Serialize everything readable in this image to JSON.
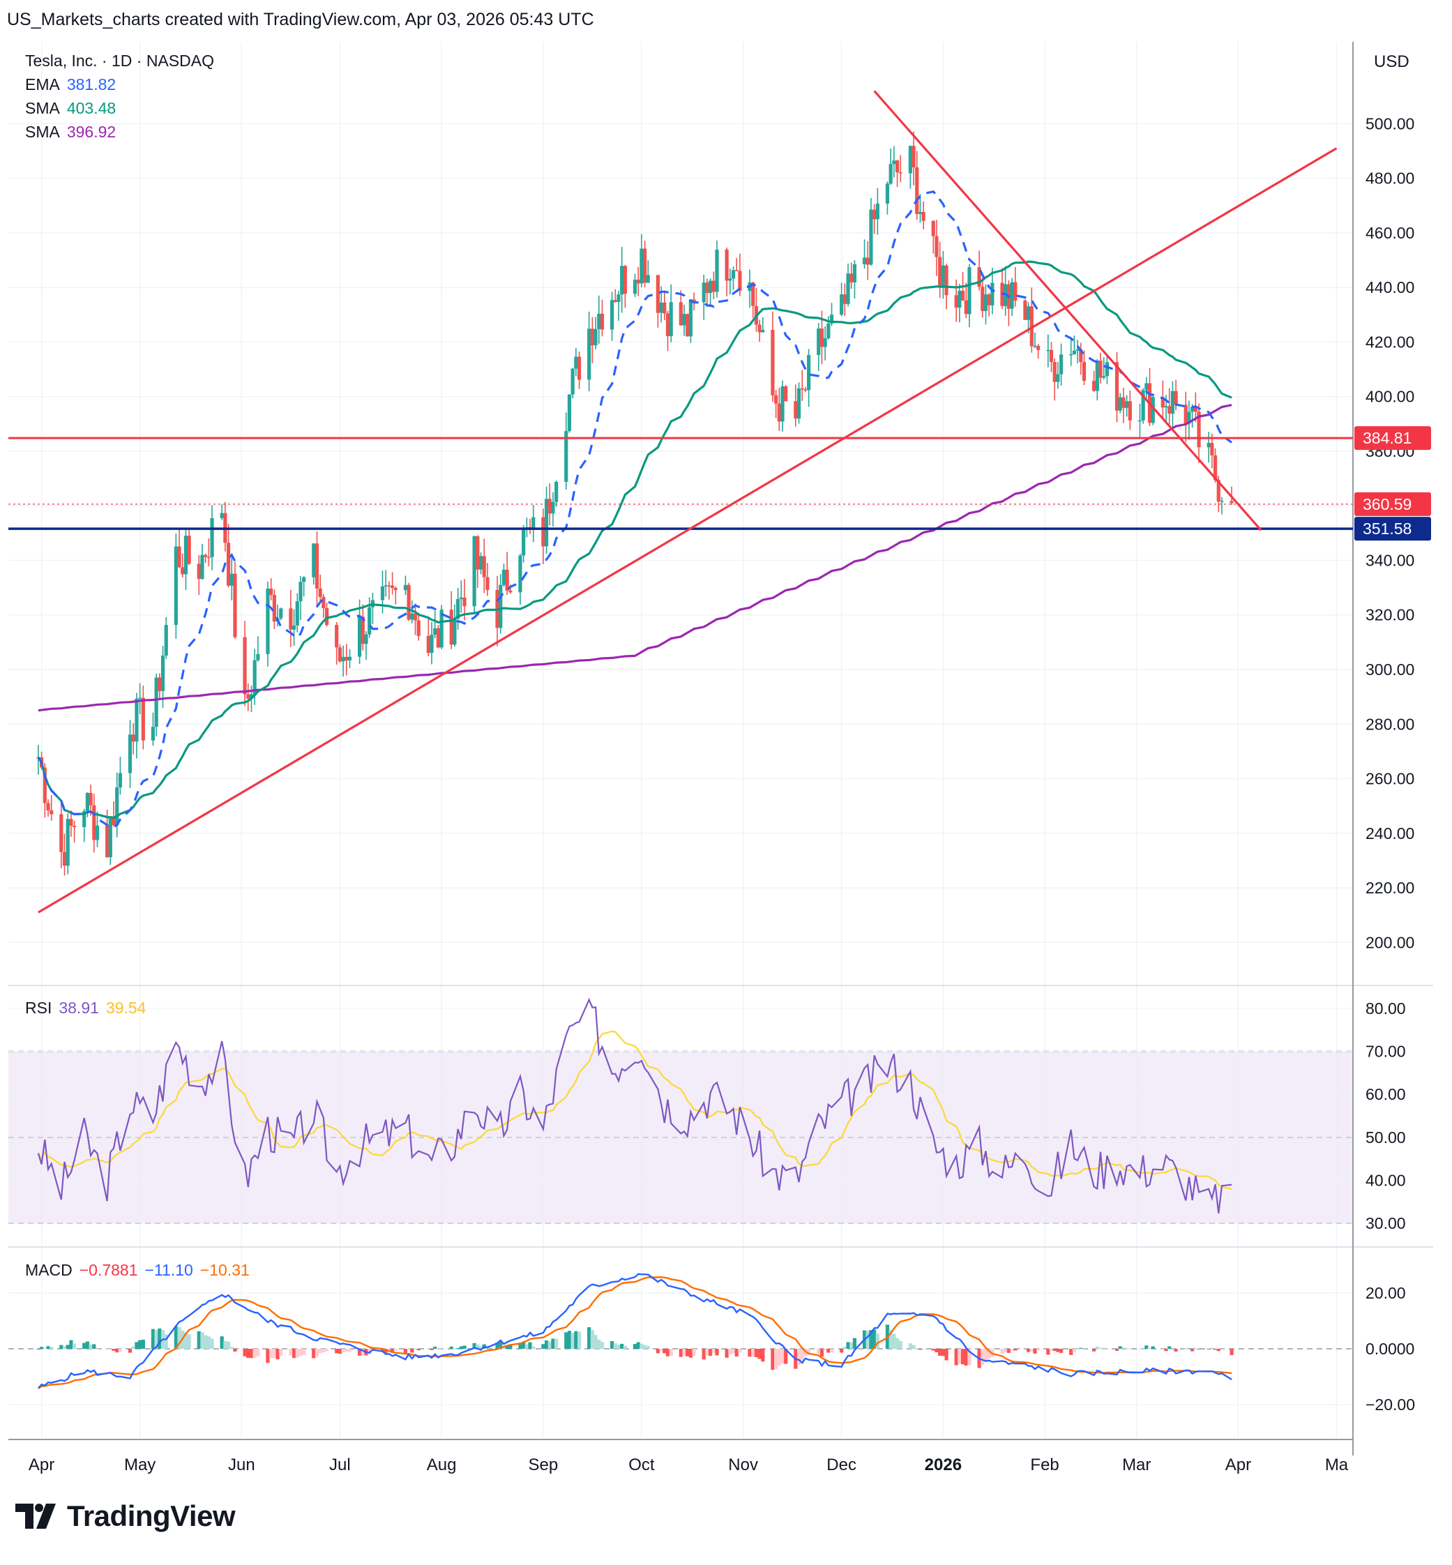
{
  "header": "US_Markets_charts created with TradingView.com, Apr 03, 2026 05:43 UTC",
  "legend": {
    "symbol": "Tesla, Inc. · 1D · NASDAQ",
    "ema_label": "EMA",
    "ema_value": "381.82",
    "sma1_label": "SMA",
    "sma1_value": "403.48",
    "sma2_label": "SMA",
    "sma2_value": "396.92",
    "rsi_label": "RSI",
    "rsi_value": "38.91",
    "rsi_ma_value": "39.54",
    "macd_label": "MACD",
    "macd_hist": "−0.7881",
    "macd_line": "−11.10",
    "macd_signal": "−10.31"
  },
  "brand": "TradingView",
  "colors": {
    "up": "#26a69a",
    "down": "#ef5350",
    "ema": "#2962ff",
    "sma50": "#089981",
    "sma200": "#9c27b0",
    "trend": "#f23645",
    "support": "#0d2a8c",
    "rsi": "#7e57c2",
    "rsi_ma": "#fdd835",
    "macd": "#2962ff",
    "signal": "#ff6d00"
  },
  "chart_data": [
    {
      "type": "candlestick",
      "currency": "USD",
      "x_ticks": [
        "Apr",
        "May",
        "Jun",
        "Jul",
        "Aug",
        "Sep",
        "Oct",
        "Nov",
        "Dec",
        "2026",
        "Feb",
        "Mar",
        "Apr",
        "Ma"
      ],
      "y_ticks": [
        "200.00",
        "220.00",
        "240.00",
        "260.00",
        "280.00",
        "300.00",
        "320.00",
        "340.00",
        "360.00",
        "380.00",
        "400.00",
        "420.00",
        "440.00",
        "460.00",
        "480.00",
        "500.00"
      ],
      "ylim": [
        185,
        530
      ],
      "price_labels": [
        {
          "value": 384.81,
          "text": "384.81",
          "color": "#f23645"
        },
        {
          "value": 360.59,
          "text": "360.59",
          "color": "#f23645"
        },
        {
          "value": 351.58,
          "text": "351.58",
          "color": "#0d2a8c"
        }
      ],
      "horizontal_lines": [
        384.81,
        351.58
      ],
      "current_price": 360.59,
      "trendlines": [
        {
          "from": [
            "2025-03-31",
            211
          ],
          "to": [
            "2026-05-01",
            491
          ]
        },
        {
          "from": [
            "2025-12-11",
            512
          ],
          "to": [
            "2026-04-08",
            351
          ]
        }
      ],
      "closes_key": [
        [
          "2025-03-31",
          268
        ],
        [
          "2025-04-07",
          233
        ],
        [
          "2025-04-14",
          252
        ],
        [
          "2025-04-21",
          236
        ],
        [
          "2025-04-28",
          282
        ],
        [
          "2025-05-05",
          280
        ],
        [
          "2025-05-12",
          342
        ],
        [
          "2025-05-19",
          338
        ],
        [
          "2025-05-26",
          360
        ],
        [
          "2025-06-02",
          284
        ],
        [
          "2025-06-09",
          325
        ],
        [
          "2025-06-16",
          322
        ],
        [
          "2025-06-23",
          338
        ],
        [
          "2025-06-30",
          302
        ],
        [
          "2025-07-07",
          315
        ],
        [
          "2025-07-14",
          322
        ],
        [
          "2025-07-21",
          330
        ],
        [
          "2025-07-28",
          308
        ],
        [
          "2025-08-04",
          318
        ],
        [
          "2025-08-11",
          340
        ],
        [
          "2025-08-18",
          322
        ],
        [
          "2025-08-25",
          348
        ],
        [
          "2025-09-01",
          350
        ],
        [
          "2025-09-08",
          396
        ],
        [
          "2025-09-15",
          425
        ],
        [
          "2025-09-22",
          438
        ],
        [
          "2025-10-01",
          452
        ],
        [
          "2025-10-08",
          432
        ],
        [
          "2025-10-15",
          425
        ],
        [
          "2025-10-22",
          445
        ],
        [
          "2025-10-29",
          452
        ],
        [
          "2025-11-03",
          440
        ],
        [
          "2025-11-10",
          400
        ],
        [
          "2025-11-17",
          392
        ],
        [
          "2025-11-24",
          418
        ],
        [
          "2025-12-01",
          430
        ],
        [
          "2025-12-08",
          452
        ],
        [
          "2025-12-15",
          480
        ],
        [
          "2025-12-22",
          485
        ],
        [
          "2025-12-29",
          450
        ],
        [
          "2026-01-05",
          438
        ],
        [
          "2026-01-12",
          440
        ],
        [
          "2026-01-19",
          438
        ],
        [
          "2026-01-26",
          430
        ],
        [
          "2026-02-02",
          410
        ],
        [
          "2026-02-09",
          420
        ],
        [
          "2026-02-16",
          410
        ],
        [
          "2026-02-23",
          402
        ],
        [
          "2026-03-02",
          398
        ],
        [
          "2026-03-09",
          400
        ],
        [
          "2026-03-16",
          395
        ],
        [
          "2026-03-23",
          375
        ],
        [
          "2026-03-30",
          361
        ]
      ],
      "ema_last": 381.82,
      "sma50_last": 403.48,
      "sma200_last": 396.92
    },
    {
      "type": "line",
      "name": "RSI",
      "y_ticks": [
        "30.00",
        "40.00",
        "50.00",
        "60.00",
        "70.00",
        "80.00"
      ],
      "bands": [
        30,
        50,
        70
      ],
      "ylim": [
        25,
        85
      ],
      "rsi_key": [
        [
          "2025-03-31",
          48
        ],
        [
          "2025-04-07",
          38
        ],
        [
          "2025-04-14",
          50
        ],
        [
          "2025-04-21",
          40
        ],
        [
          "2025-04-28",
          58
        ],
        [
          "2025-05-05",
          55
        ],
        [
          "2025-05-12",
          72
        ],
        [
          "2025-05-19",
          63
        ],
        [
          "2025-05-26",
          68
        ],
        [
          "2025-06-02",
          40
        ],
        [
          "2025-06-09",
          52
        ],
        [
          "2025-06-16",
          48
        ],
        [
          "2025-06-23",
          56
        ],
        [
          "2025-06-30",
          42
        ],
        [
          "2025-07-07",
          48
        ],
        [
          "2025-07-14",
          50
        ],
        [
          "2025-07-21",
          52
        ],
        [
          "2025-07-28",
          44
        ],
        [
          "2025-08-04",
          48
        ],
        [
          "2025-08-11",
          58
        ],
        [
          "2025-08-18",
          50
        ],
        [
          "2025-08-25",
          60
        ],
        [
          "2025-09-01",
          52
        ],
        [
          "2025-09-08",
          72
        ],
        [
          "2025-09-15",
          80
        ],
        [
          "2025-09-22",
          66
        ],
        [
          "2025-10-01",
          72
        ],
        [
          "2025-10-08",
          58
        ],
        [
          "2025-10-15",
          55
        ],
        [
          "2025-10-22",
          60
        ],
        [
          "2025-10-29",
          56
        ],
        [
          "2025-11-03",
          50
        ],
        [
          "2025-11-10",
          42
        ],
        [
          "2025-11-17",
          40
        ],
        [
          "2025-11-24",
          52
        ],
        [
          "2025-12-01",
          58
        ],
        [
          "2025-12-08",
          62
        ],
        [
          "2025-12-15",
          67
        ],
        [
          "2025-12-22",
          63
        ],
        [
          "2025-12-29",
          48
        ],
        [
          "2026-01-05",
          44
        ],
        [
          "2026-01-12",
          48
        ],
        [
          "2026-01-19",
          42
        ],
        [
          "2026-01-26",
          46
        ],
        [
          "2026-02-02",
          38
        ],
        [
          "2026-02-09",
          48
        ],
        [
          "2026-02-16",
          42
        ],
        [
          "2026-02-23",
          44
        ],
        [
          "2026-03-02",
          42
        ],
        [
          "2026-03-09",
          44
        ],
        [
          "2026-03-16",
          40
        ],
        [
          "2026-03-23",
          34
        ],
        [
          "2026-03-30",
          39
        ]
      ]
    },
    {
      "type": "bar+line",
      "name": "MACD",
      "y_ticks": [
        "−20.00",
        "0.0000",
        "20.00"
      ],
      "ylim": [
        -32,
        36
      ],
      "macd_key": [
        [
          "2025-03-31",
          -14
        ],
        [
          "2025-04-14",
          -8
        ],
        [
          "2025-04-28",
          -10
        ],
        [
          "2025-05-12",
          8
        ],
        [
          "2025-05-26",
          20
        ],
        [
          "2025-06-09",
          10
        ],
        [
          "2025-06-23",
          4
        ],
        [
          "2025-07-07",
          0
        ],
        [
          "2025-07-21",
          -3
        ],
        [
          "2025-08-04",
          -2
        ],
        [
          "2025-08-18",
          2
        ],
        [
          "2025-09-01",
          6
        ],
        [
          "2025-09-15",
          22
        ],
        [
          "2025-10-01",
          27
        ],
        [
          "2025-10-15",
          20
        ],
        [
          "2025-11-03",
          12
        ],
        [
          "2025-11-17",
          -4
        ],
        [
          "2025-12-01",
          -6
        ],
        [
          "2025-12-15",
          12
        ],
        [
          "2025-12-29",
          12
        ],
        [
          "2026-01-12",
          -4
        ],
        [
          "2026-01-26",
          -6
        ],
        [
          "2026-02-09",
          -9
        ],
        [
          "2026-03-02",
          -8
        ],
        [
          "2026-03-23",
          -8
        ],
        [
          "2026-03-30",
          -11
        ]
      ]
    }
  ]
}
